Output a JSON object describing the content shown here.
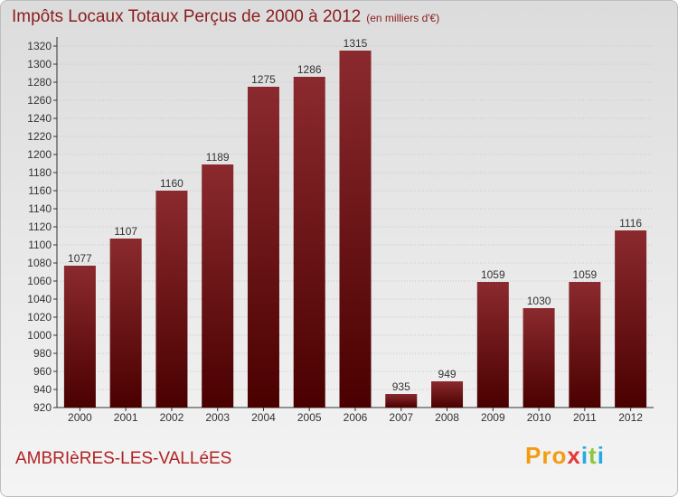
{
  "header": {
    "title": "Impôts Locaux Totaux Perçus de 2000 à 2012",
    "subtitle": "(en milliers d'€)"
  },
  "footer": {
    "commune": "AMBRIèRES-LES-VALLéES",
    "logo": {
      "p1": "Pro",
      "x": "x",
      "i": "i",
      "t": "t",
      "i2": "i"
    }
  },
  "colors": {
    "bar_top": "#8b2a2e",
    "bar_bottom": "#4a0000",
    "title": "#8a1d1d",
    "commune": "#b22222"
  },
  "chart_data": {
    "type": "bar",
    "title": "Impôts Locaux Totaux Perçus de 2000 à 2012",
    "xlabel": "",
    "ylabel": "",
    "categories": [
      "2000",
      "2001",
      "2002",
      "2003",
      "2004",
      "2005",
      "2006",
      "2007",
      "2008",
      "2009",
      "2010",
      "2011",
      "2012"
    ],
    "values": [
      1077,
      1107,
      1160,
      1189,
      1275,
      1286,
      1315,
      935,
      949,
      1059,
      1030,
      1059,
      1116
    ],
    "ylim": [
      920,
      1320
    ],
    "yticks": [
      920,
      940,
      960,
      980,
      1000,
      1020,
      1040,
      1060,
      1080,
      1100,
      1120,
      1140,
      1160,
      1180,
      1200,
      1220,
      1240,
      1260,
      1280,
      1300,
      1320
    ],
    "grid": true
  }
}
